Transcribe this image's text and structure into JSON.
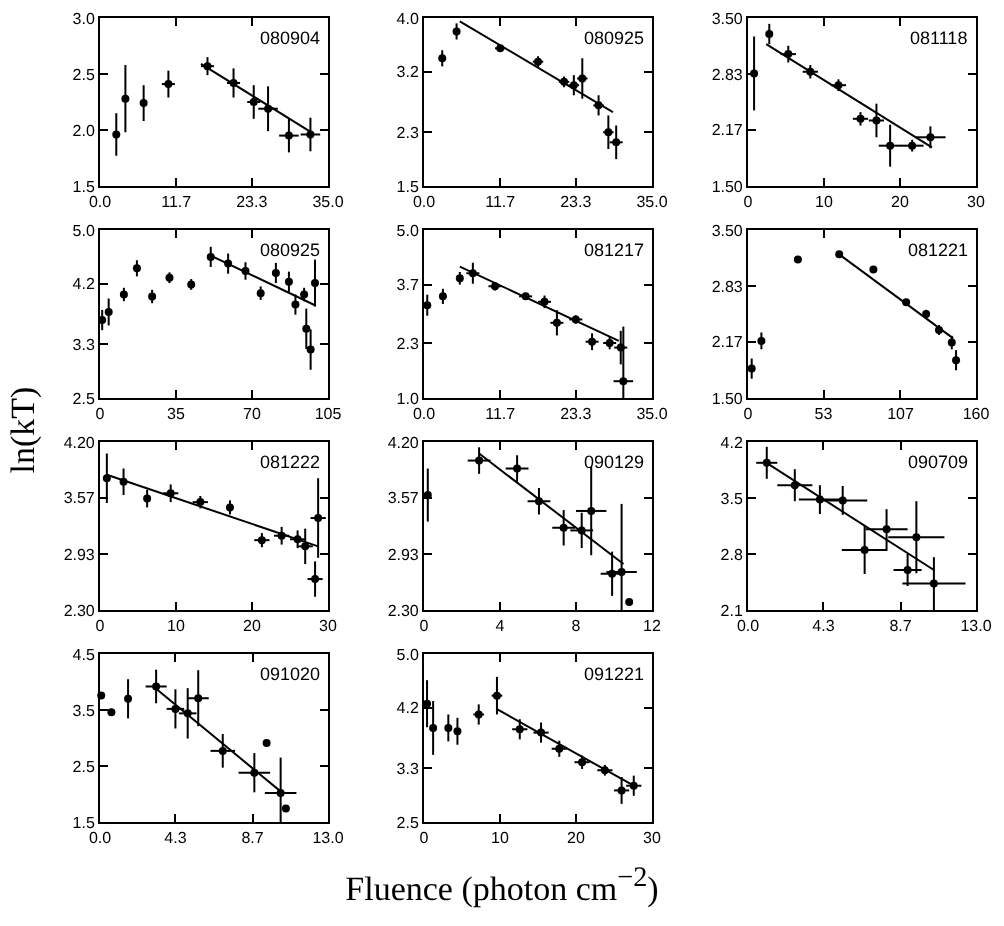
{
  "chart_data": [
    {
      "type": "scatter",
      "annotations": [
        "080904"
      ],
      "xlim": [
        0,
        35
      ],
      "xticks": [
        {
          "value": 0,
          "label": "0.0"
        },
        11.7,
        23.3,
        {
          "value": 35,
          "label": "35.0"
        }
      ],
      "ylim": [
        1.5,
        3.0
      ],
      "yticks": [
        1.5,
        {
          "value": 2,
          "label": "2.0"
        },
        2.5,
        {
          "value": 3,
          "label": "3.0"
        }
      ],
      "series": [
        {
          "marker": "circle",
          "color": "#000000",
          "x": [
            2.5,
            3.9,
            6.7,
            10.5,
            16.5,
            20.5,
            23.6,
            25.8,
            29.0,
            32.3
          ],
          "values": [
            1.96,
            2.28,
            2.24,
            2.41,
            2.57,
            2.42,
            2.25,
            2.19,
            1.95,
            1.96
          ],
          "errors": [
            0.19,
            0.3,
            0.16,
            0.12,
            0.08,
            0.13,
            0.15,
            0.2,
            0.15,
            0.15
          ],
          "xerrors": [
            null,
            null,
            null,
            1,
            1,
            1,
            1,
            1.5,
            1.5,
            1.5
          ]
        },
        {
          "type": "line",
          "color": "#000000",
          "x": [
            15.5,
            32.7
          ],
          "values": [
            2.59,
            1.97
          ]
        }
      ]
    },
    {
      "type": "scatter",
      "annotations": [
        "080925"
      ],
      "xlim": [
        0,
        35
      ],
      "xticks": [
        {
          "value": 0,
          "label": "0.0"
        },
        11.7,
        23.3,
        {
          "value": 35,
          "label": "35.0"
        }
      ],
      "ylim": [
        1.5,
        4.0
      ],
      "yticks": [
        1.5,
        2.3,
        3.2,
        {
          "value": 4,
          "label": "4.0"
        }
      ],
      "series": [
        {
          "marker": "circle",
          "color": "#000000",
          "x": [
            2.8,
            5.0,
            11.7,
            17.5,
            21.5,
            23.0,
            24.3,
            26.8,
            28.3,
            29.5
          ],
          "values": [
            3.4,
            3.8,
            3.55,
            3.35,
            3.05,
            3.0,
            3.1,
            2.7,
            2.3,
            2.15
          ],
          "errors": [
            0.12,
            0.12,
            0.05,
            0.08,
            0.08,
            0.15,
            0.3,
            0.15,
            0.25,
            0.25
          ],
          "xerrors": [
            null,
            null,
            0.8,
            0.8,
            0.8,
            0.8,
            0.8,
            0.8,
            0.8,
            1
          ]
        },
        {
          "type": "line",
          "color": "#000000",
          "x": [
            5.5,
            29.0
          ],
          "values": [
            3.95,
            2.6
          ]
        }
      ]
    },
    {
      "type": "scatter",
      "annotations": [
        "081118"
      ],
      "xlim": [
        0,
        30
      ],
      "xticks": [
        0,
        10,
        20,
        30
      ],
      "ylim": [
        1.5,
        3.5
      ],
      "yticks": [
        {
          "value": 1.5,
          "label": "1.50"
        },
        2.17,
        2.83,
        {
          "value": 3.5,
          "label": "3.50"
        }
      ],
      "series": [
        {
          "marker": "circle",
          "color": "#000000",
          "x": [
            0.8,
            2.8,
            5.3,
            8.2,
            11.9,
            14.8,
            16.9,
            18.7,
            21.6,
            24.0
          ],
          "values": [
            2.84,
            3.31,
            3.07,
            2.86,
            2.7,
            2.3,
            2.28,
            1.98,
            1.98,
            2.08
          ],
          "errors": [
            0.44,
            0.12,
            0.1,
            0.08,
            0.07,
            0.08,
            0.2,
            0.25,
            0.07,
            0.13
          ],
          "xerrors": [
            null,
            null,
            1,
            1,
            1,
            1,
            1,
            1.5,
            1.5,
            2
          ]
        },
        {
          "type": "line",
          "color": "#000000",
          "x": [
            2.4,
            24.2
          ],
          "values": [
            3.19,
            1.96
          ]
        }
      ]
    },
    {
      "type": "scatter",
      "annotations": [
        "080925"
      ],
      "ylabel": "ln(kT)",
      "xlim": [
        0,
        105
      ],
      "xticks": [
        0,
        35,
        70,
        105
      ],
      "ylim": [
        2.5,
        5.0
      ],
      "yticks": [
        2.5,
        3.3,
        4.2,
        {
          "value": 5,
          "label": "5.0"
        }
      ],
      "series": [
        {
          "marker": "circle",
          "color": "#000000",
          "x": [
            1,
            4,
            11,
            17,
            24,
            32,
            42,
            51,
            59,
            67,
            74,
            81,
            87,
            90,
            94,
            95,
            97,
            99
          ],
          "values": [
            3.66,
            3.78,
            4.04,
            4.43,
            4.01,
            4.29,
            4.19,
            4.6,
            4.5,
            4.39,
            4.06,
            4.36,
            4.23,
            3.89,
            4.04,
            3.53,
            3.22,
            4.21
          ],
          "errors": [
            0.15,
            0.2,
            0.1,
            0.12,
            0.1,
            0.08,
            0.08,
            0.15,
            0.15,
            0.13,
            0.1,
            0.15,
            0.15,
            0.15,
            0.1,
            0.3,
            0.3,
            0.35
          ]
        },
        {
          "type": "line",
          "color": "#000000",
          "x": [
            51,
            99
          ],
          "values": [
            4.62,
            3.88
          ]
        }
      ]
    },
    {
      "type": "scatter",
      "annotations": [
        "081217"
      ],
      "xlim": [
        0,
        35
      ],
      "xticks": [
        {
          "value": 0,
          "label": "0.0"
        },
        11.7,
        23.3,
        {
          "value": 35,
          "label": "35.0"
        }
      ],
      "ylim": [
        1.0,
        5.0
      ],
      "yticks": [
        {
          "value": 1,
          "label": "1.0"
        },
        2.3,
        3.7,
        {
          "value": 5,
          "label": "5.0"
        }
      ],
      "series": [
        {
          "marker": "circle",
          "color": "#000000",
          "x": [
            0.5,
            2.9,
            5.5,
            7.5,
            10.9,
            15.6,
            18.5,
            20.4,
            23.3,
            25.8,
            28.5,
            30.2,
            30.6
          ],
          "values": [
            3.21,
            3.42,
            3.85,
            3.97,
            3.66,
            3.42,
            3.29,
            2.79,
            2.87,
            2.34,
            2.31,
            2.2,
            1.4
          ],
          "errors": [
            0.25,
            0.18,
            0.15,
            0.25,
            0.1,
            0.08,
            0.15,
            0.3,
            0.1,
            0.2,
            0.15,
            0.4,
            [
              1.0,
              2.7
            ]
          ],
          "xerrors": [
            null,
            null,
            null,
            1,
            1,
            1,
            1,
            1,
            1,
            1,
            1,
            1,
            1.5
          ]
        },
        {
          "type": "line",
          "color": "#000000",
          "x": [
            5.5,
            29.9
          ],
          "values": [
            4.13,
            2.36
          ]
        }
      ]
    },
    {
      "type": "scatter",
      "annotations": [
        "081221"
      ],
      "xlim": [
        0,
        160
      ],
      "xticks": [
        0,
        53,
        107,
        160
      ],
      "ylim": [
        1.5,
        3.5
      ],
      "yticks": [
        {
          "value": 1.5,
          "label": "1.50"
        },
        2.17,
        2.83,
        {
          "value": 3.5,
          "label": "3.50"
        }
      ],
      "series": [
        {
          "marker": "circle",
          "color": "#000000",
          "x": [
            2.6,
            9.4,
            35,
            64,
            88,
            111,
            125,
            134,
            143,
            146
          ],
          "values": [
            1.85,
            2.18,
            3.15,
            3.21,
            3.03,
            2.64,
            2.5,
            2.31,
            2.16,
            1.95
          ],
          "errors": [
            0.12,
            0.1,
            null,
            null,
            null,
            0.03,
            0.05,
            0.06,
            0.08,
            0.12
          ]
        },
        {
          "type": "line",
          "color": "#000000",
          "x": [
            64,
            144
          ],
          "values": [
            3.21,
            2.21
          ]
        }
      ]
    },
    {
      "type": "scatter",
      "annotations": [
        "081222"
      ],
      "xlim": [
        0,
        30
      ],
      "xticks": [
        0,
        10,
        20,
        30
      ],
      "ylim": [
        2.3,
        4.2
      ],
      "yticks": [
        {
          "value": 2.3,
          "label": "2.30"
        },
        2.93,
        3.57,
        {
          "value": 4.2,
          "label": "4.20"
        }
      ],
      "series": [
        {
          "marker": "circle",
          "color": "#000000",
          "x": [
            0.9,
            3.1,
            6.2,
            9.3,
            13.2,
            17.1,
            21.3,
            23.9,
            26.0,
            27.0,
            28.3,
            28.7
          ],
          "values": [
            3.79,
            3.75,
            3.56,
            3.62,
            3.52,
            3.46,
            3.09,
            3.14,
            3.1,
            3.02,
            2.65,
            3.34
          ],
          "errors": [
            0.28,
            0.15,
            0.1,
            0.1,
            0.07,
            0.08,
            0.08,
            0.1,
            0.1,
            0.2,
            0.2,
            0.45
          ],
          "xerrors": [
            null,
            null,
            null,
            1,
            1,
            null,
            1,
            1,
            1,
            1,
            1,
            1
          ]
        },
        {
          "type": "line",
          "color": "#000000",
          "x": [
            0.9,
            28.7
          ],
          "values": [
            3.83,
            3.02
          ]
        }
      ]
    },
    {
      "type": "scatter",
      "annotations": [
        "090129"
      ],
      "xlim": [
        0,
        12
      ],
      "xticks": [
        0,
        4,
        8,
        12
      ],
      "ylim": [
        2.3,
        4.2
      ],
      "yticks": [
        {
          "value": 2.3,
          "label": "2.30"
        },
        2.93,
        3.57,
        {
          "value": 4.2,
          "label": "4.20"
        }
      ],
      "series": [
        {
          "marker": "circle",
          "color": "#000000",
          "x": [
            0.2,
            2.9,
            4.9,
            6.05,
            7.35,
            8.3,
            8.8,
            9.9,
            10.4,
            10.8
          ],
          "values": [
            3.6,
            3.99,
            3.9,
            3.53,
            3.23,
            3.2,
            3.42,
            2.71,
            2.73,
            2.39
          ],
          "errors": [
            0.3,
            0.15,
            0.15,
            0.15,
            0.2,
            0.2,
            0.5,
            0.25,
            [
              2.3,
              3.5
            ],
            null
          ],
          "xerrors": [
            null,
            0.6,
            0.6,
            0.6,
            0.6,
            0.6,
            0.8,
            0.6,
            0.8,
            null
          ]
        },
        {
          "type": "line",
          "color": "#000000",
          "x": [
            2.9,
            10.5
          ],
          "values": [
            4.07,
            2.82
          ]
        }
      ]
    },
    {
      "type": "scatter",
      "annotations": [
        "090709"
      ],
      "xlim": [
        0,
        13
      ],
      "xticks": [
        {
          "value": 0,
          "label": "0.0"
        },
        4.3,
        8.7,
        {
          "value": 13,
          "label": "13.0"
        }
      ],
      "ylim": [
        2.1,
        4.2
      ],
      "yticks": [
        2.1,
        2.8,
        3.5,
        4.2
      ],
      "series": [
        {
          "marker": "circle",
          "color": "#000000",
          "x": [
            1.07,
            2.67,
            4.1,
            5.4,
            6.65,
            7.9,
            9.1,
            9.6,
            10.6
          ],
          "values": [
            3.94,
            3.66,
            3.48,
            3.47,
            2.85,
            3.11,
            2.6,
            3.01,
            2.43
          ],
          "errors": [
            0.2,
            0.2,
            0.18,
            0.18,
            0.3,
            0.25,
            0.2,
            0.45,
            0.33
          ],
          "xerrors": [
            0.6,
            1,
            1.2,
            1.4,
            1.3,
            1.2,
            0.8,
            1.6,
            1.8
          ]
        },
        {
          "type": "line",
          "color": "#000000",
          "x": [
            0.9,
            10.6
          ],
          "values": [
            3.96,
            2.6
          ]
        }
      ]
    },
    {
      "type": "scatter",
      "annotations": [
        "091020"
      ],
      "xlim": [
        0,
        13
      ],
      "xticks": [
        {
          "value": 0,
          "label": "0.0"
        },
        4.3,
        8.7,
        {
          "value": 13,
          "label": "13.0"
        }
      ],
      "ylim": [
        1.5,
        4.5
      ],
      "yticks": [
        1.5,
        2.5,
        3.5,
        4.5
      ],
      "series": [
        {
          "marker": "circle",
          "color": "#000000",
          "x": [
            0.07,
            0.65,
            1.6,
            3.2,
            4.3,
            5.0,
            5.6,
            7.0,
            8.8,
            9.5,
            10.3,
            10.6
          ],
          "values": [
            3.76,
            3.46,
            3.7,
            3.92,
            3.52,
            3.44,
            3.71,
            2.77,
            2.38,
            2.91,
            2.02,
            1.74
          ],
          "errors": [
            null,
            null,
            0.35,
            0.3,
            0.35,
            0.45,
            0.5,
            0.3,
            0.35,
            null,
            [
              1.5,
              2.65
            ],
            null
          ],
          "xerrors": [
            null,
            null,
            null,
            0.6,
            0.5,
            0.5,
            0.6,
            0.7,
            0.9,
            null,
            0.9,
            null
          ]
        },
        {
          "type": "line",
          "color": "#000000",
          "x": [
            3.2,
            10.4
          ],
          "values": [
            3.88,
            2.02
          ]
        }
      ]
    },
    {
      "type": "scatter",
      "annotations": [
        "091221"
      ],
      "xlabel": "Fluence (photon cm$^{−2}$)",
      "xlim": [
        0,
        30
      ],
      "xticks": [
        0,
        10,
        20,
        30
      ],
      "ylim": [
        2.5,
        5.0
      ],
      "yticks": [
        2.5,
        3.3,
        4.2,
        {
          "value": 5,
          "label": "5.0"
        }
      ],
      "series": [
        {
          "marker": "circle",
          "color": "#000000",
          "x": [
            0.4,
            1.2,
            3.2,
            4.4,
            7.2,
            9.6,
            12.6,
            15.4,
            17.8,
            20.8,
            23.8,
            26.0,
            27.6
          ],
          "values": [
            4.26,
            3.9,
            3.9,
            3.85,
            4.1,
            4.38,
            3.88,
            3.83,
            3.59,
            3.39,
            3.27,
            2.97,
            3.04
          ],
          "errors": [
            0.35,
            0.4,
            0.2,
            0.2,
            0.15,
            0.28,
            0.15,
            0.15,
            0.12,
            0.1,
            0.08,
            0.2,
            0.15
          ],
          "xerrors": [
            null,
            null,
            null,
            null,
            0.7,
            0.7,
            1,
            1,
            1,
            1,
            1,
            1,
            1
          ]
        },
        {
          "type": "line",
          "color": "#000000",
          "x": [
            9.6,
            27.6
          ],
          "values": [
            4.18,
            3.04
          ]
        }
      ]
    }
  ]
}
